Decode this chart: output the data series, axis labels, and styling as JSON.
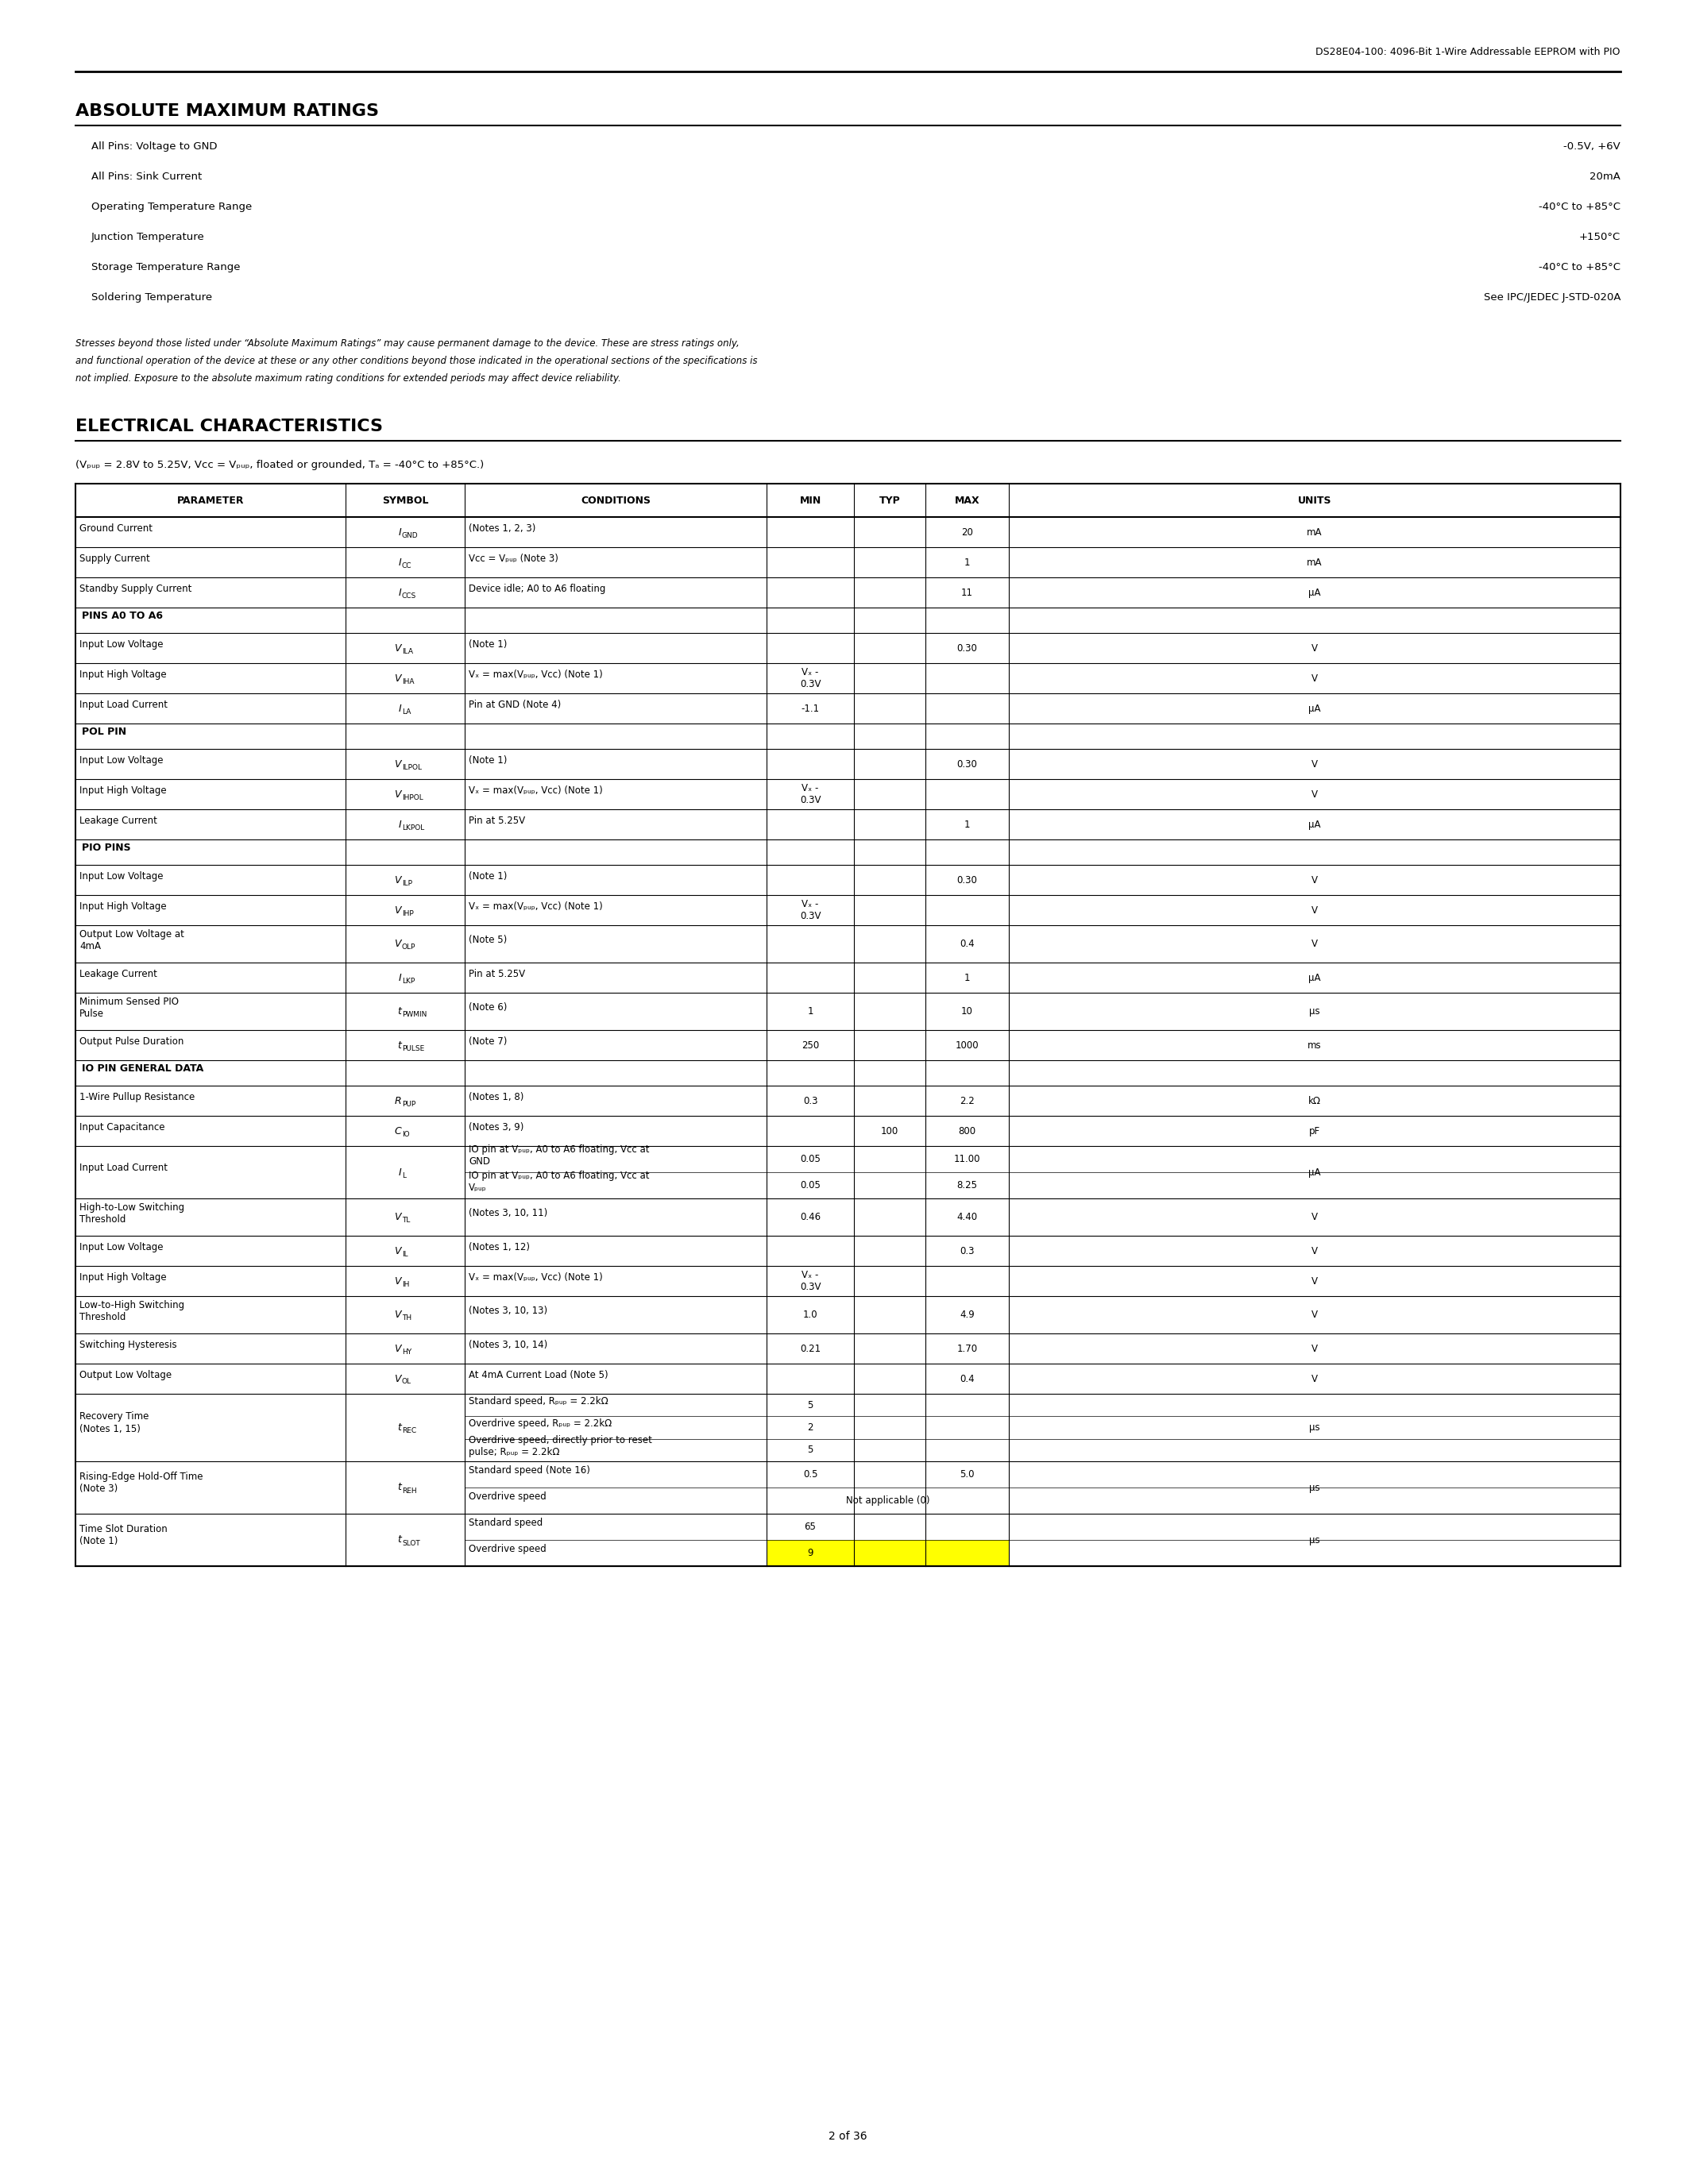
{
  "header_title": "DS28E04-100: 4096-Bit 1-Wire Addressable EEPROM with PIO",
  "section1_title": "ABSOLUTE MAXIMUM RATINGS",
  "abs_max_rows": [
    [
      "All Pins: Voltage to GND",
      "-0.5V, +6V"
    ],
    [
      "All Pins: Sink Current",
      "20mA"
    ],
    [
      "Operating Temperature Range",
      "-40°C to +85°C"
    ],
    [
      "Junction Temperature",
      "+150°C"
    ],
    [
      "Storage Temperature Range",
      "-40°C to +85°C"
    ],
    [
      "Soldering Temperature",
      "See IPC/JEDEC J-STD-020A"
    ]
  ],
  "stress_note": "Stresses beyond those listed under “Absolute Maximum Ratings” may cause permanent damage to the device. These are stress ratings only, and functional operation of the device at these or any other conditions beyond those indicated in the operational sections of the specifications is not implied. Exposure to the absolute maximum rating conditions for extended periods may affect device reliability.",
  "section2_title": "ELECTRICAL CHARACTERISTICS",
  "ec_subtitle": "(Vₚᵤₚ = 2.8V to 5.25V, Vᴄᴄ = Vₚᵤₚ, floated or grounded, Tₐ = -40°C to +85°C.)",
  "ec_subtitle_plain": "(VPUP = 2.8V to 5.25V, VCC = VPUP, floated or grounded, TA = -40°C to +85°C.)",
  "table_headers": [
    "PARAMETER",
    "SYMBOL",
    "CONDITIONS",
    "MIN",
    "TYP",
    "MAX",
    "UNITS"
  ],
  "table_rows": [
    {
      "param": "Ground Current",
      "symbol": "I_GND",
      "conditions": "(Notes 1, 2, 3)",
      "min": "",
      "typ": "",
      "max": "20",
      "units": "mA",
      "section": false,
      "highlight": false
    },
    {
      "param": "Supply Current",
      "symbol": "I_CC",
      "conditions": "V_CC = V_PUP (Note 3)",
      "min": "",
      "typ": "",
      "max": "1",
      "units": "mA",
      "section": false,
      "highlight": false
    },
    {
      "param": "Standby Supply Current",
      "symbol": "I_CCS",
      "conditions": "Device idle; A0 to A6 floating",
      "min": "",
      "typ": "",
      "max": "11",
      "units": "μA",
      "section": false,
      "highlight": false
    },
    {
      "param": "PINS A0 TO A6",
      "symbol": "",
      "conditions": "",
      "min": "",
      "typ": "",
      "max": "",
      "units": "",
      "section": true,
      "highlight": false
    },
    {
      "param": "Input Low Voltage",
      "symbol": "V_ILA",
      "conditions": "(Note 1)",
      "min": "",
      "typ": "",
      "max": "0.30",
      "units": "V",
      "section": false,
      "highlight": false
    },
    {
      "param": "Input High Voltage",
      "symbol": "V_IHA",
      "conditions": "V_X = max(V_PUP, V_CC) (Note 1)",
      "min": "V_X -\n0.3V",
      "typ": "",
      "max": "",
      "units": "V",
      "section": false,
      "highlight": false
    },
    {
      "param": "Input Load Current",
      "symbol": "I_LA",
      "conditions": "Pin at GND (Note 4)",
      "min": "-1.1",
      "typ": "",
      "max": "",
      "units": "μA",
      "section": false,
      "highlight": false
    },
    {
      "param": "POL PIN",
      "symbol": "",
      "conditions": "",
      "min": "",
      "typ": "",
      "max": "",
      "units": "",
      "section": true,
      "highlight": false
    },
    {
      "param": "Input Low Voltage",
      "symbol": "V_ILPOL",
      "conditions": "(Note 1)",
      "min": "",
      "typ": "",
      "max": "0.30",
      "units": "V",
      "section": false,
      "highlight": false
    },
    {
      "param": "Input High Voltage",
      "symbol": "V_IHPOL",
      "conditions": "V_X = max(V_PUP, V_CC) (Note 1)",
      "min": "V_X -\n0.3V",
      "typ": "",
      "max": "",
      "units": "V",
      "section": false,
      "highlight": false
    },
    {
      "param": "Leakage Current",
      "symbol": "I_LKPOL",
      "conditions": "Pin at 5.25V",
      "min": "",
      "typ": "",
      "max": "1",
      "units": "μA",
      "section": false,
      "highlight": false
    },
    {
      "param": "PIO PINS",
      "symbol": "",
      "conditions": "",
      "min": "",
      "typ": "",
      "max": "",
      "units": "",
      "section": true,
      "highlight": false
    },
    {
      "param": "Input Low Voltage",
      "symbol": "V_ILP",
      "conditions": "(Note 1)",
      "min": "",
      "typ": "",
      "max": "0.30",
      "units": "V",
      "section": false,
      "highlight": false
    },
    {
      "param": "Input High Voltage",
      "symbol": "V_IHP",
      "conditions": "V_X = max(V_PUP, V_CC) (Note 1)",
      "min": "V_X -\n0.3V",
      "typ": "",
      "max": "",
      "units": "V",
      "section": false,
      "highlight": false
    },
    {
      "param": "Output Low Voltage at\n4mA",
      "symbol": "V_OLP",
      "conditions": "(Note 5)",
      "min": "",
      "typ": "",
      "max": "0.4",
      "units": "V",
      "section": false,
      "highlight": false
    },
    {
      "param": "Leakage Current",
      "symbol": "I_LKP",
      "conditions": "Pin at 5.25V",
      "min": "",
      "typ": "",
      "max": "1",
      "units": "μA",
      "section": false,
      "highlight": false
    },
    {
      "param": "Minimum Sensed PIO\nPulse",
      "symbol": "t_PWMIN",
      "conditions": "(Note 6)",
      "min": "1",
      "typ": "",
      "max": "10",
      "units": "μs",
      "section": false,
      "highlight": false
    },
    {
      "param": "Output Pulse Duration",
      "symbol": "t_PULSE",
      "conditions": "(Note 7)",
      "min": "250",
      "typ": "",
      "max": "1000",
      "units": "ms",
      "section": false,
      "highlight": false
    },
    {
      "param": "IO PIN GENERAL DATA",
      "symbol": "",
      "conditions": "",
      "min": "",
      "typ": "",
      "max": "",
      "units": "",
      "section": true,
      "highlight": false
    },
    {
      "param": "1-Wire Pullup Resistance",
      "symbol": "R_PUP",
      "conditions": "(Notes 1, 8)",
      "min": "0.3",
      "typ": "",
      "max": "2.2",
      "units": "kΩ",
      "section": false,
      "highlight": false
    },
    {
      "param": "Input Capacitance",
      "symbol": "C_IO",
      "conditions": "(Notes 3, 9)",
      "min": "",
      "typ": "100",
      "max": "800",
      "units": "pF",
      "section": false,
      "highlight": false
    },
    {
      "param": "Input Load Current",
      "symbol": "I_L",
      "conditions_multi": [
        "IO pin at V_PUP, A0 to A6 floating, V_CC at\nGND",
        "IO pin at V_PUP, A0 to A6 floating, V_CC at\nV_PUP"
      ],
      "min_multi": [
        "0.05",
        "0.05"
      ],
      "max_multi": [
        "11.00",
        "8.25"
      ],
      "units": "μA",
      "section": false,
      "highlight": false,
      "multi": true
    },
    {
      "param": "High-to-Low Switching\nThreshold",
      "symbol": "V_TL",
      "conditions": "(Notes 3, 10, 11)",
      "min": "0.46",
      "typ": "",
      "max": "4.40",
      "units": "V",
      "section": false,
      "highlight": false
    },
    {
      "param": "Input Low Voltage",
      "symbol": "V_IL",
      "conditions": "(Notes 1, 12)",
      "min": "",
      "typ": "",
      "max": "0.3",
      "units": "V",
      "section": false,
      "highlight": false
    },
    {
      "param": "Input High Voltage",
      "symbol": "V_IH",
      "conditions": "V_X = max(V_PUP, V_CC) (Note 1)",
      "min": "V_X -\n0.3V",
      "typ": "",
      "max": "",
      "units": "V",
      "section": false,
      "highlight": false
    },
    {
      "param": "Low-to-High Switching\nThreshold",
      "symbol": "V_TH",
      "conditions": "(Notes 3, 10, 13)",
      "min": "1.0",
      "typ": "",
      "max": "4.9",
      "units": "V",
      "section": false,
      "highlight": false
    },
    {
      "param": "Switching Hysteresis",
      "symbol": "V_HY",
      "conditions": "(Notes 3, 10, 14)",
      "min": "0.21",
      "typ": "",
      "max": "1.70",
      "units": "V",
      "section": false,
      "highlight": false
    },
    {
      "param": "Output Low Voltage",
      "symbol": "V_OL",
      "conditions": "At 4mA Current Load (Note 5)",
      "min": "",
      "typ": "",
      "max": "0.4",
      "units": "V",
      "section": false,
      "highlight": false
    },
    {
      "param": "Recovery Time\n(Notes 1, 15)",
      "symbol": "t_REC",
      "conditions_multi": [
        "Standard speed, R_PUP = 2.2kΩ",
        "Overdrive speed, R_PUP = 2.2kΩ",
        "Overdrive speed, directly prior to reset\npulse; R_PUP = 2.2kΩ"
      ],
      "min_multi": [
        "5",
        "2",
        "5"
      ],
      "max_multi": [
        "",
        "",
        ""
      ],
      "units": "μs",
      "section": false,
      "highlight": false,
      "multi": true
    },
    {
      "param": "Rising-Edge Hold-Off Time\n(Note 3)",
      "symbol": "t_REH",
      "conditions_multi": [
        "Standard speed (Note 16)",
        "Overdrive speed"
      ],
      "min_multi": [
        "0.5",
        ""
      ],
      "max_multi": [
        "5.0",
        "Not applicable (0)"
      ],
      "units": "μs",
      "section": false,
      "highlight": false,
      "multi": true
    },
    {
      "param": "Time Slot Duration\n(Note 1)",
      "symbol": "t_SLOT",
      "conditions_multi": [
        "Standard speed",
        "Overdrive speed"
      ],
      "min_multi": [
        "65",
        "9"
      ],
      "max_multi": [
        "",
        ""
      ],
      "units": "μs",
      "section": false,
      "highlight": false,
      "multi": true,
      "highlight_multi": [
        false,
        true
      ]
    }
  ],
  "footer": "2 of 36",
  "highlight_color": "#FFFF00",
  "section_bg": "#FFFFFF",
  "border_color": "#000000"
}
